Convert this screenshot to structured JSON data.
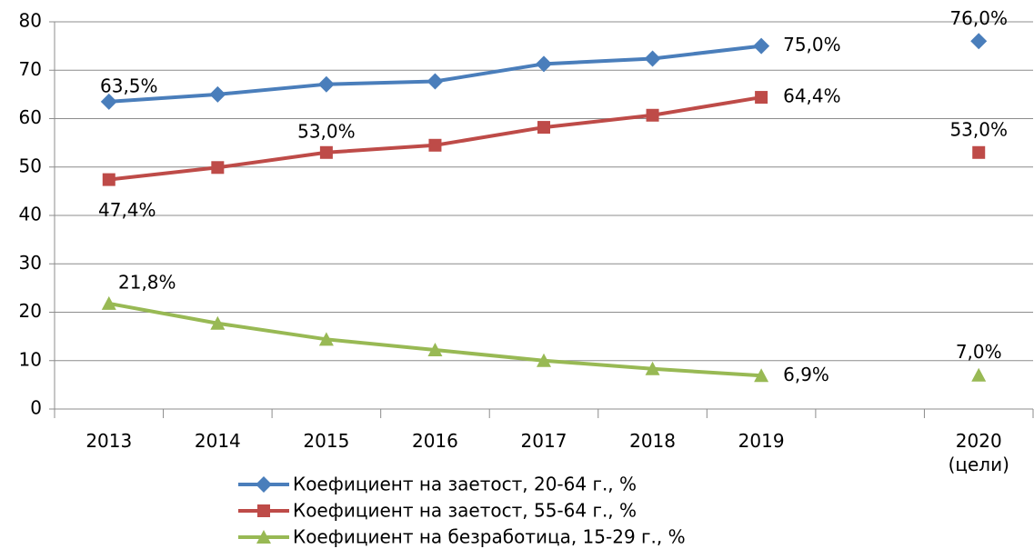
{
  "chart_data": {
    "type": "line",
    "categories": [
      "2013",
      "2014",
      "2015",
      "2016",
      "2017",
      "2018",
      "2019",
      null,
      "2020 (цели)"
    ],
    "series": [
      {
        "name": "Коефициент на заетост, 20-64 г., %",
        "color": "#4a7ebb",
        "marker": "diamond",
        "values": [
          63.5,
          65.0,
          67.1,
          67.7,
          71.3,
          72.4,
          75.0,
          null,
          76.0
        ],
        "value_labels": [
          "63,5%",
          null,
          null,
          null,
          null,
          null,
          "75,0%",
          null,
          "76,0%"
        ]
      },
      {
        "name": "Коефициент на заетост, 55-64 г., %",
        "color": "#be4b48",
        "marker": "square",
        "values": [
          47.4,
          49.9,
          53.0,
          54.5,
          58.2,
          60.7,
          64.4,
          null,
          53.0
        ],
        "value_labels": [
          "47,4%",
          null,
          "53,0%",
          null,
          null,
          null,
          "64,4%",
          null,
          "53,0%"
        ]
      },
      {
        "name": "Коефициент на безработица, 15-29 г., %",
        "color": "#98b954",
        "marker": "triangle",
        "values": [
          21.8,
          17.7,
          14.4,
          12.2,
          10.0,
          8.3,
          6.9,
          null,
          7.0
        ],
        "value_labels": [
          "21,8%",
          null,
          null,
          null,
          null,
          null,
          "6,9%",
          null,
          "7,0%"
        ]
      }
    ],
    "ylim": [
      0,
      80
    ],
    "yticks": [
      0,
      10,
      20,
      30,
      40,
      50,
      60,
      70,
      80
    ],
    "grid": true,
    "legend": "bottom"
  }
}
